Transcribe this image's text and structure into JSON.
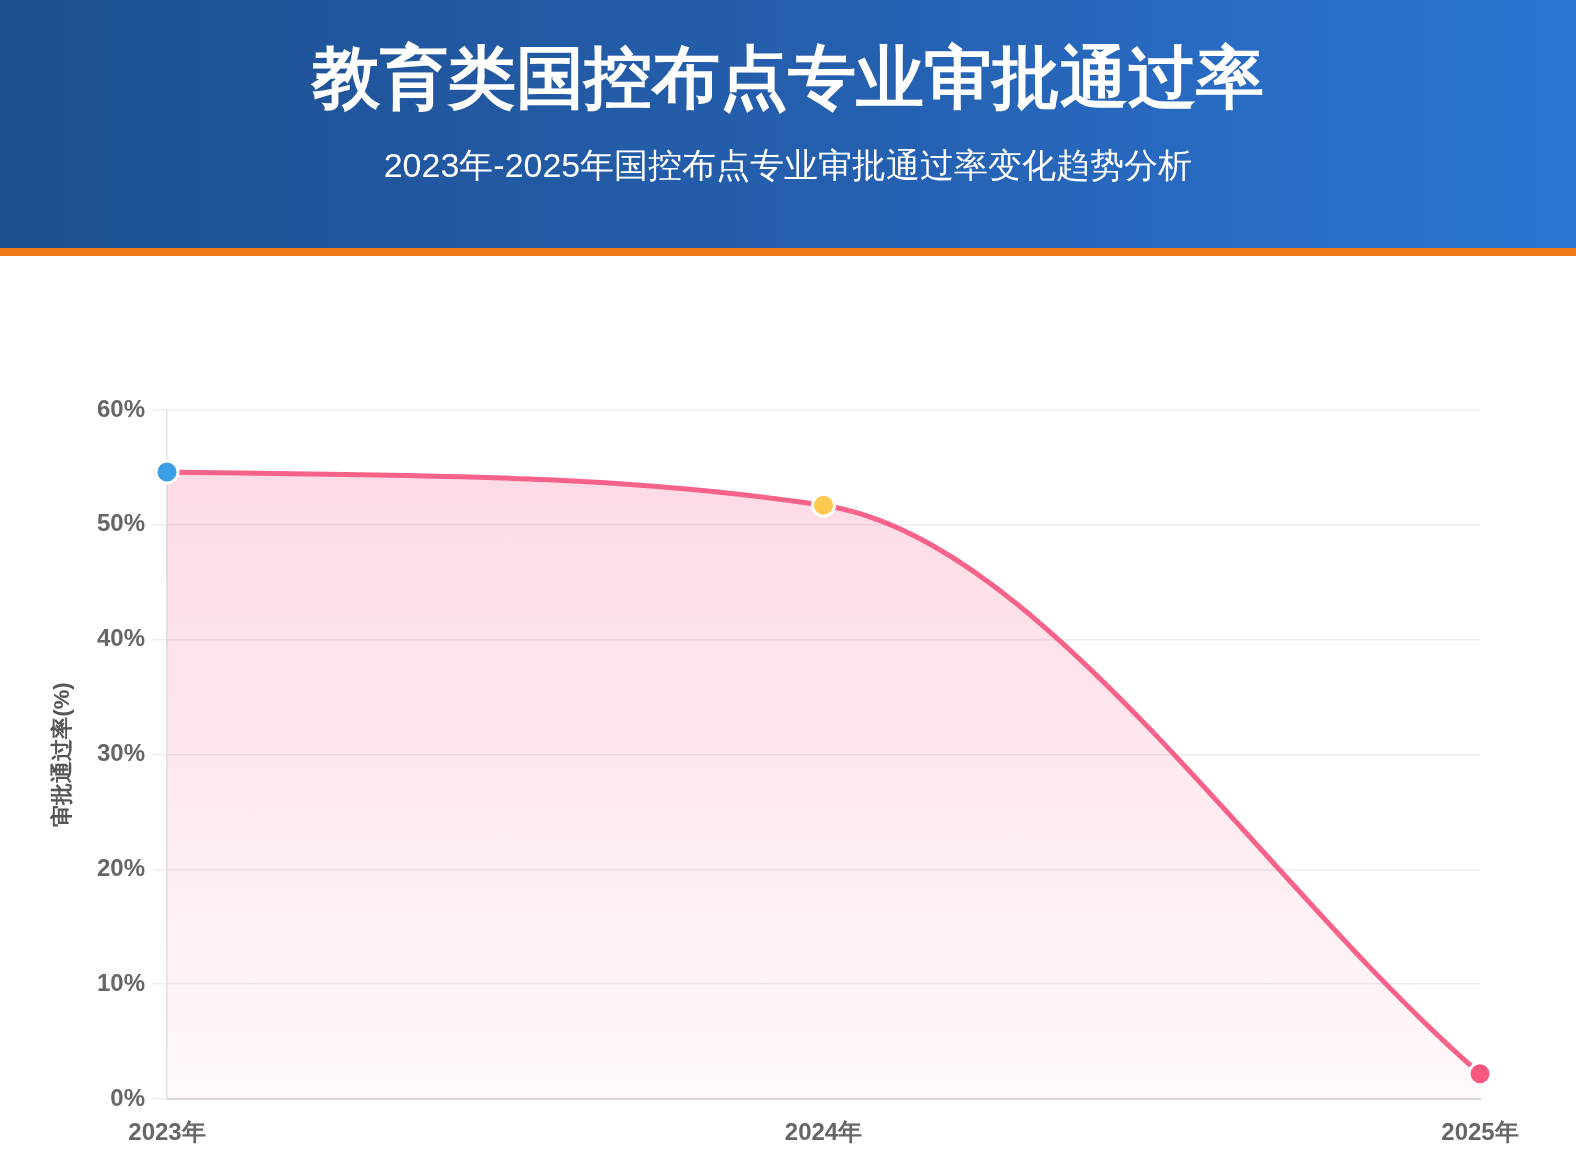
{
  "chart_data": {
    "type": "area",
    "title": "教育类国控布点专业审批通过率",
    "subtitle": "2023年-2025年国控布点专业审批通过率变化趋势分析",
    "ylabel": "审批通过率(%)",
    "categories": [
      "2023年",
      "2024年",
      "2025年"
    ],
    "series": [
      {
        "color": "#f7628a",
        "colors": [
          "#3a9de6",
          "#fdc94f",
          "#f6587f"
        ],
        "values": [
          54.6,
          51.7,
          2.2
        ]
      }
    ],
    "ylim": [
      0,
      60
    ],
    "yticks": [
      {
        "value": 0,
        "label": "0%"
      },
      {
        "value": 10,
        "label": "10%"
      },
      {
        "value": 20,
        "label": "20%"
      },
      {
        "value": 30,
        "label": "30%"
      },
      {
        "value": 40,
        "label": "40%"
      },
      {
        "value": 50,
        "label": "50%"
      },
      {
        "value": 60,
        "label": "60%"
      }
    ],
    "grid": "y",
    "marker": "circle",
    "line_style": "solid"
  }
}
